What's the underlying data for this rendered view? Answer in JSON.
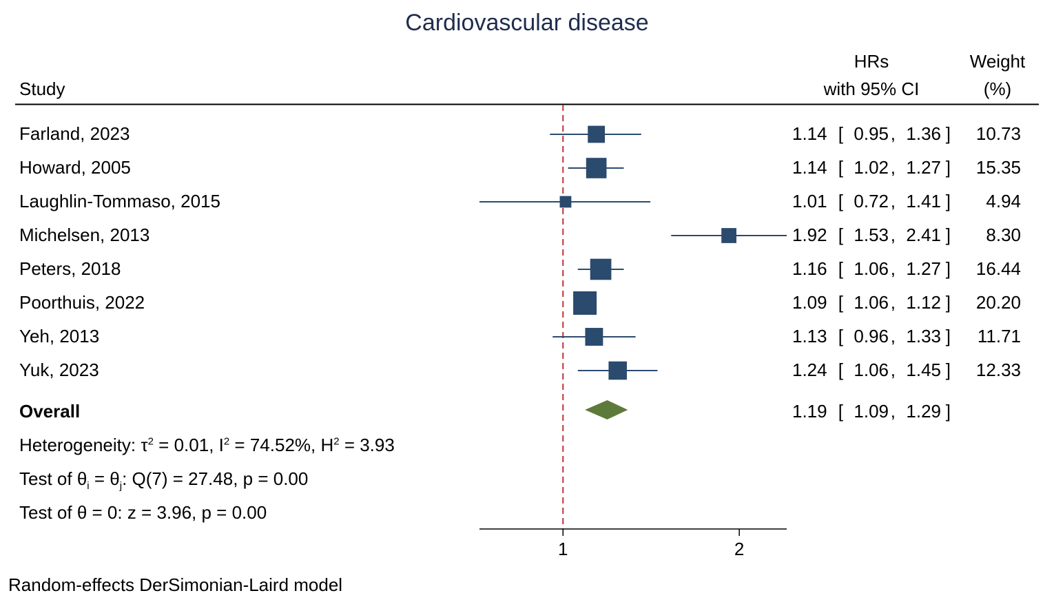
{
  "chart_data": {
    "type": "forest",
    "title": "Cardiovascular disease",
    "columns": {
      "study": "Study",
      "effect_line1": "HRs",
      "effect_line2": "with 95% CI",
      "weight_line1": "Weight",
      "weight_line2": "(%)"
    },
    "studies": [
      {
        "name": "Farland, 2023",
        "hr": 1.14,
        "lo": 0.95,
        "hi": 1.36,
        "hr_txt": "1.14",
        "lo_txt": "0.95",
        "hi_txt": "1.36",
        "weight": 10.73,
        "weight_txt": "10.73"
      },
      {
        "name": "Howard, 2005",
        "hr": 1.14,
        "lo": 1.02,
        "hi": 1.27,
        "hr_txt": "1.14",
        "lo_txt": "1.02",
        "hi_txt": "1.27",
        "weight": 15.35,
        "weight_txt": "15.35"
      },
      {
        "name": "Laughlin-Tommaso, 2015",
        "hr": 1.01,
        "lo": 0.72,
        "hi": 1.41,
        "hr_txt": "1.01",
        "lo_txt": "0.72",
        "hi_txt": "1.41",
        "weight": 4.94,
        "weight_txt": "4.94"
      },
      {
        "name": "Michelsen, 2013",
        "hr": 1.92,
        "lo": 1.53,
        "hi": 2.41,
        "hr_txt": "1.92",
        "lo_txt": "1.53",
        "hi_txt": "2.41",
        "weight": 8.3,
        "weight_txt": "8.30"
      },
      {
        "name": "Peters, 2018",
        "hr": 1.16,
        "lo": 1.06,
        "hi": 1.27,
        "hr_txt": "1.16",
        "lo_txt": "1.06",
        "hi_txt": "1.27",
        "weight": 16.44,
        "weight_txt": "16.44"
      },
      {
        "name": "Poorthuis, 2022",
        "hr": 1.09,
        "lo": 1.06,
        "hi": 1.12,
        "hr_txt": "1.09",
        "lo_txt": "1.06",
        "hi_txt": "1.12",
        "weight": 20.2,
        "weight_txt": "20.20"
      },
      {
        "name": "Yeh, 2013",
        "hr": 1.13,
        "lo": 0.96,
        "hi": 1.33,
        "hr_txt": "1.13",
        "lo_txt": "0.96",
        "hi_txt": "1.33",
        "weight": 11.71,
        "weight_txt": "11.71"
      },
      {
        "name": "Yuk, 2023",
        "hr": 1.24,
        "lo": 1.06,
        "hi": 1.45,
        "hr_txt": "1.24",
        "lo_txt": "1.06",
        "hi_txt": "1.45",
        "weight": 12.33,
        "weight_txt": "12.33"
      }
    ],
    "overall": {
      "label": "Overall",
      "hr": 1.19,
      "lo": 1.09,
      "hi": 1.29,
      "hr_txt": "1.19",
      "lo_txt": "1.09",
      "hi_txt": "1.29"
    },
    "heterogeneity": {
      "prefix": "Heterogeneity: τ",
      "tau_sq_part": " = 0.01, I",
      "i_sq_part": " = 74.52%, H",
      "h_sq_part": " = 3.93",
      "sq": "2"
    },
    "test_homogeneity": {
      "prefix": "Test of θ",
      "sub_i": "i",
      "mid": " = θ",
      "sub_j": "j",
      "suffix": ": Q(7) = 27.48, p = 0.00"
    },
    "test_effect": "Test of θ = 0: z = 3.96, p = 0.00",
    "x_axis": {
      "scale": "log",
      "xlim": [
        0.72,
        2.41
      ],
      "ticks": [
        1,
        2
      ],
      "tick_labels": [
        "1",
        "2"
      ],
      "reference_line": 1
    },
    "note": "Random-effects DerSimonian-Laird model",
    "colors": {
      "marker": "#2a4a6e",
      "ci_line": "#2a4a6e",
      "diamond": "#5e7a3a",
      "reference": "#c0303a",
      "title": "#1f2d4d"
    }
  }
}
